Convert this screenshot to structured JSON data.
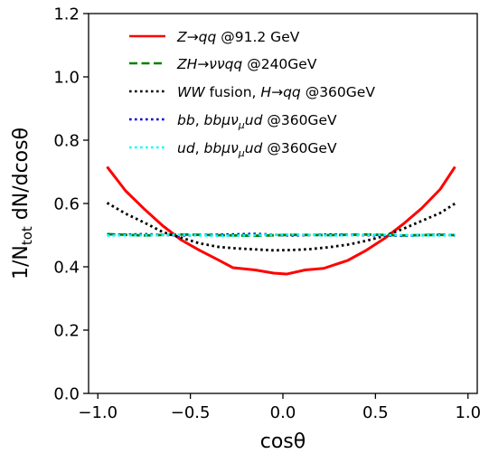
{
  "chart_data": {
    "type": "line",
    "title": "",
    "xlabel": "cosθ",
    "ylabel": "1/N_tot dN/dcosθ",
    "xlim": [
      -1.05,
      1.05
    ],
    "ylim": [
      0.0,
      1.2
    ],
    "xticks": [
      -1.0,
      -0.5,
      0.0,
      0.5,
      1.0
    ],
    "xtick_labels": [
      "−1.0",
      "−0.5",
      "0.0",
      "0.5",
      "1.0"
    ],
    "yticks": [
      0.0,
      0.2,
      0.4,
      0.6,
      0.8,
      1.0,
      1.2
    ],
    "ytick_labels": [
      "0.0",
      "0.2",
      "0.4",
      "0.6",
      "0.8",
      "1.0",
      "1.2"
    ],
    "grid": false,
    "legend_position": "top-center",
    "series": [
      {
        "name": "Z → qq @91.2 GeV",
        "color": "#ff0000",
        "style": "solid",
        "x": [
          -0.95,
          -0.85,
          -0.75,
          -0.65,
          -0.55,
          -0.45,
          -0.35,
          -0.27,
          -0.15,
          -0.05,
          0.02,
          0.12,
          0.22,
          0.35,
          0.45,
          0.55,
          0.65,
          0.75,
          0.85,
          0.93
        ],
        "y": [
          0.716,
          0.64,
          0.583,
          0.53,
          0.485,
          0.452,
          0.422,
          0.397,
          0.39,
          0.38,
          0.377,
          0.39,
          0.395,
          0.42,
          0.452,
          0.49,
          0.535,
          0.585,
          0.645,
          0.716
        ]
      },
      {
        "name": "ZH → ννqq @240GeV",
        "color": "#008000",
        "style": "dashed",
        "x": [
          -0.95,
          -0.75,
          -0.55,
          -0.35,
          -0.15,
          0.05,
          0.25,
          0.45,
          0.65,
          0.85,
          0.93
        ],
        "y": [
          0.503,
          0.499,
          0.502,
          0.5,
          0.498,
          0.501,
          0.5,
          0.502,
          0.499,
          0.501,
          0.5
        ]
      },
      {
        "name": "WW fusion, H → qq @360GeV",
        "color": "#000000",
        "style": "dotted",
        "x": [
          -0.95,
          -0.85,
          -0.75,
          -0.65,
          -0.55,
          -0.45,
          -0.35,
          -0.25,
          -0.15,
          -0.05,
          0.05,
          0.15,
          0.25,
          0.35,
          0.45,
          0.55,
          0.65,
          0.75,
          0.85,
          0.93
        ],
        "y": [
          0.602,
          0.568,
          0.54,
          0.51,
          0.492,
          0.474,
          0.463,
          0.458,
          0.455,
          0.452,
          0.453,
          0.456,
          0.462,
          0.47,
          0.482,
          0.498,
          0.52,
          0.545,
          0.57,
          0.6
        ]
      },
      {
        "name": "bb, bbμν_μud @360GeV",
        "color": "#0000cd",
        "style": "dotted",
        "x": [
          -0.95,
          -0.75,
          -0.55,
          -0.35,
          -0.15,
          0.05,
          0.25,
          0.45,
          0.65,
          0.85,
          0.93
        ],
        "y": [
          0.5,
          0.503,
          0.499,
          0.501,
          0.504,
          0.499,
          0.502,
          0.5,
          0.498,
          0.501,
          0.499
        ]
      },
      {
        "name": "ud, bbμν_μud @360GeV",
        "color": "#00ffff",
        "style": "dotted",
        "x": [
          -0.95,
          -0.75,
          -0.55,
          -0.35,
          -0.15,
          0.05,
          0.25,
          0.45,
          0.65,
          0.85,
          0.93
        ],
        "y": [
          0.499,
          0.5,
          0.501,
          0.498,
          0.5,
          0.502,
          0.499,
          0.501,
          0.5,
          0.499,
          0.5
        ]
      }
    ]
  }
}
